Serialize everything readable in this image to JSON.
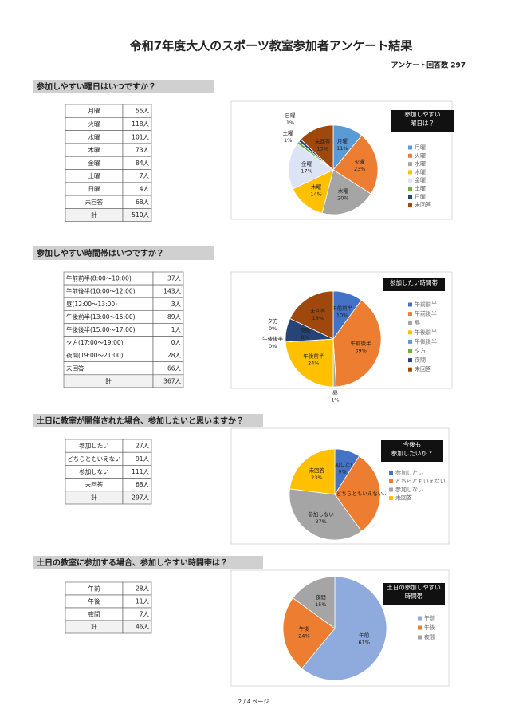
{
  "header": {
    "title": "令和7年度大人のスポーツ教室参加者アンケート結果",
    "subtitle": "アンケート回答数 297"
  },
  "sections": [
    {
      "heading": "参加しやすい曜日はいつですか？",
      "table": {
        "rows": [
          [
            "月曜",
            "55人"
          ],
          [
            "火曜",
            "118人"
          ],
          [
            "水曜",
            "101人"
          ],
          [
            "木曜",
            "73人"
          ],
          [
            "金曜",
            "84人"
          ],
          [
            "土曜",
            "7人"
          ],
          [
            "日曜",
            "4人"
          ],
          [
            "未回答",
            "68人"
          ],
          [
            "計",
            "510人"
          ]
        ]
      },
      "chart": {
        "type": "pie",
        "title": [
          "参加しやすい",
          "曜日は？"
        ],
        "categories": [
          "月曜",
          "火曜",
          "水曜",
          "木曜",
          "金曜",
          "土曜",
          "日曜",
          "未回答"
        ],
        "values": [
          11,
          23,
          20,
          14,
          17,
          1,
          1,
          13
        ],
        "value_labels": [
          "11%",
          "23%",
          "20%",
          "14%",
          "17%",
          "1%",
          "1%",
          "13%"
        ],
        "colors": [
          "#5b9bd5",
          "#ed7d31",
          "#a5a5a5",
          "#ffc000",
          "#dbe3f4",
          "#70ad47",
          "#264478",
          "#9e480e"
        ]
      }
    },
    {
      "heading": "参加しやすい時間帯はいつですか？",
      "table": {
        "rows": [
          [
            "午前前半(8:00～10:00)",
            "37人"
          ],
          [
            "午前後半(10:00～12:00)",
            "143人"
          ],
          [
            "昼(12:00～13:00)",
            "3人"
          ],
          [
            "午後前半(13:00～15:00)",
            "89人"
          ],
          [
            "午後後半(15:00～17:00)",
            "1人"
          ],
          [
            "夕方(17:00～19:00)",
            "0人"
          ],
          [
            "夜間(19:00～21:00)",
            "28人"
          ],
          [
            "未回答",
            "66人"
          ],
          [
            "計",
            "367人"
          ]
        ]
      },
      "chart": {
        "type": "pie",
        "title": [
          "参加したい時間帯"
        ],
        "categories": [
          "午前前半",
          "午前後半",
          "昼",
          "午後前半",
          "午後後半",
          "夕方",
          "夜間",
          "未回答"
        ],
        "values": [
          10,
          39,
          1,
          24,
          0,
          0,
          8,
          18
        ],
        "value_labels": [
          "10%",
          "39%",
          "1%",
          "24%",
          "0%",
          "0%",
          "8%",
          "18%"
        ],
        "colors": [
          "#4472c4",
          "#ed7d31",
          "#a5a5a5",
          "#ffc000",
          "#5b9bd5",
          "#70ad47",
          "#264478",
          "#9e480e"
        ]
      }
    },
    {
      "heading": "土日に教室が開催された場合、参加したいと思いますか？",
      "table": {
        "rows": [
          [
            "参加したい",
            "27人"
          ],
          [
            "どちらともいえない",
            "91人"
          ],
          [
            "参加しない",
            "111人"
          ],
          [
            "未回答",
            "68人"
          ],
          [
            "計",
            "297人"
          ]
        ]
      },
      "chart": {
        "type": "pie",
        "title": [
          "今後も",
          "参加したいか？"
        ],
        "categories": [
          "参加したい",
          "どちらともいえない",
          "参加しない",
          "未回答"
        ],
        "label_names": [
          "参加したい",
          "どちらともいえない...",
          "参加しない",
          "未回答"
        ],
        "values": [
          9,
          31,
          37,
          23
        ],
        "value_labels": [
          "9%",
          null,
          "37%",
          "23%"
        ],
        "colors": [
          "#4472c4",
          "#ed7d31",
          "#a5a5a5",
          "#ffc000"
        ]
      }
    },
    {
      "heading": "土日の教室に参加する場合、参加しやすい時間帯は？",
      "table": {
        "rows": [
          [
            "午前",
            "28人"
          ],
          [
            "午後",
            "11人"
          ],
          [
            "夜間",
            "7人"
          ],
          [
            "計",
            "46人"
          ]
        ]
      },
      "chart": {
        "type": "pie",
        "title": [
          "土日の参加しやすい",
          "時間帯"
        ],
        "categories": [
          "午前",
          "午後",
          "夜間"
        ],
        "values": [
          61,
          24,
          15
        ],
        "value_labels": [
          "61%",
          "24%",
          "15%"
        ],
        "colors": [
          "#8faadc",
          "#ed7d31",
          "#a5a5a5"
        ]
      }
    }
  ],
  "footer": "2 / 4 ページ"
}
